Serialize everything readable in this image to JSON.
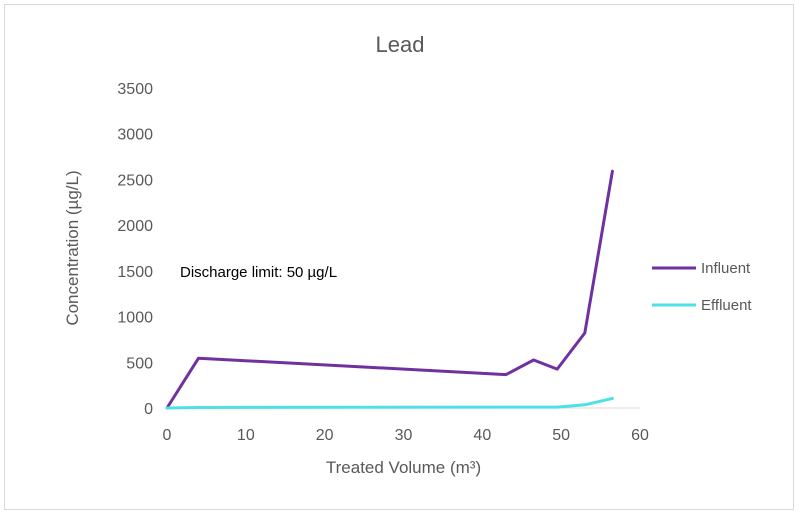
{
  "chart_data": {
    "type": "line",
    "title": "Lead",
    "xlabel": "Treated Volume (m³)",
    "ylabel": "Concentration (µg/L)",
    "xlim": [
      0,
      60
    ],
    "ylim": [
      0,
      3500
    ],
    "xticks": [
      0,
      10,
      20,
      30,
      40,
      50,
      60
    ],
    "yticks": [
      0,
      500,
      1000,
      1500,
      2000,
      2500,
      3000,
      3500
    ],
    "grid": false,
    "legend_position": "right",
    "annotation": "Discharge limit: 50 µg/L",
    "series": [
      {
        "name": "Influent",
        "color": "#7030a0",
        "x": [
          0,
          4,
          43,
          46.5,
          49.5,
          53,
          56.5
        ],
        "y": [
          0,
          545,
          365,
          525,
          425,
          820,
          2590
        ]
      },
      {
        "name": "Effluent",
        "color": "#4ee0e8",
        "x": [
          0,
          4,
          43,
          46.5,
          49.5,
          53,
          56.5
        ],
        "y": [
          0,
          5,
          10,
          10,
          10,
          35,
          105
        ]
      }
    ]
  }
}
